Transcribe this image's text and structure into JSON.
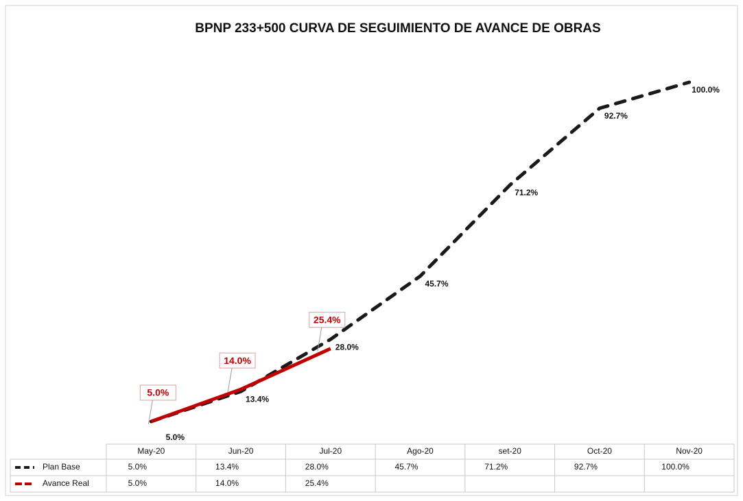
{
  "chart_data": {
    "type": "line",
    "title": "BPNP 233+500 CURVA DE SEGUIMIENTO DE AVANCE DE OBRAS",
    "categories": [
      "May-20",
      "Jun-20",
      "Jul-20",
      "Ago-20",
      "set-20",
      "Oct-20",
      "Nov-20"
    ],
    "series": [
      {
        "name": "Plan Base",
        "color": "#1a1a1a",
        "values": [
          5.0,
          13.4,
          28.0,
          45.7,
          71.2,
          92.7,
          100.0
        ],
        "value_labels": [
          "5.0%",
          "13.4%",
          "28.0%",
          "45.7%",
          "71.2%",
          "92.7%",
          "100.0%"
        ]
      },
      {
        "name": "Avance Real",
        "color": "#c00000",
        "values": [
          5.0,
          14.0,
          25.4,
          null,
          null,
          null,
          null
        ],
        "value_labels": [
          "5.0%",
          "14.0%",
          "25.4%",
          null,
          null,
          null,
          null
        ]
      }
    ]
  }
}
